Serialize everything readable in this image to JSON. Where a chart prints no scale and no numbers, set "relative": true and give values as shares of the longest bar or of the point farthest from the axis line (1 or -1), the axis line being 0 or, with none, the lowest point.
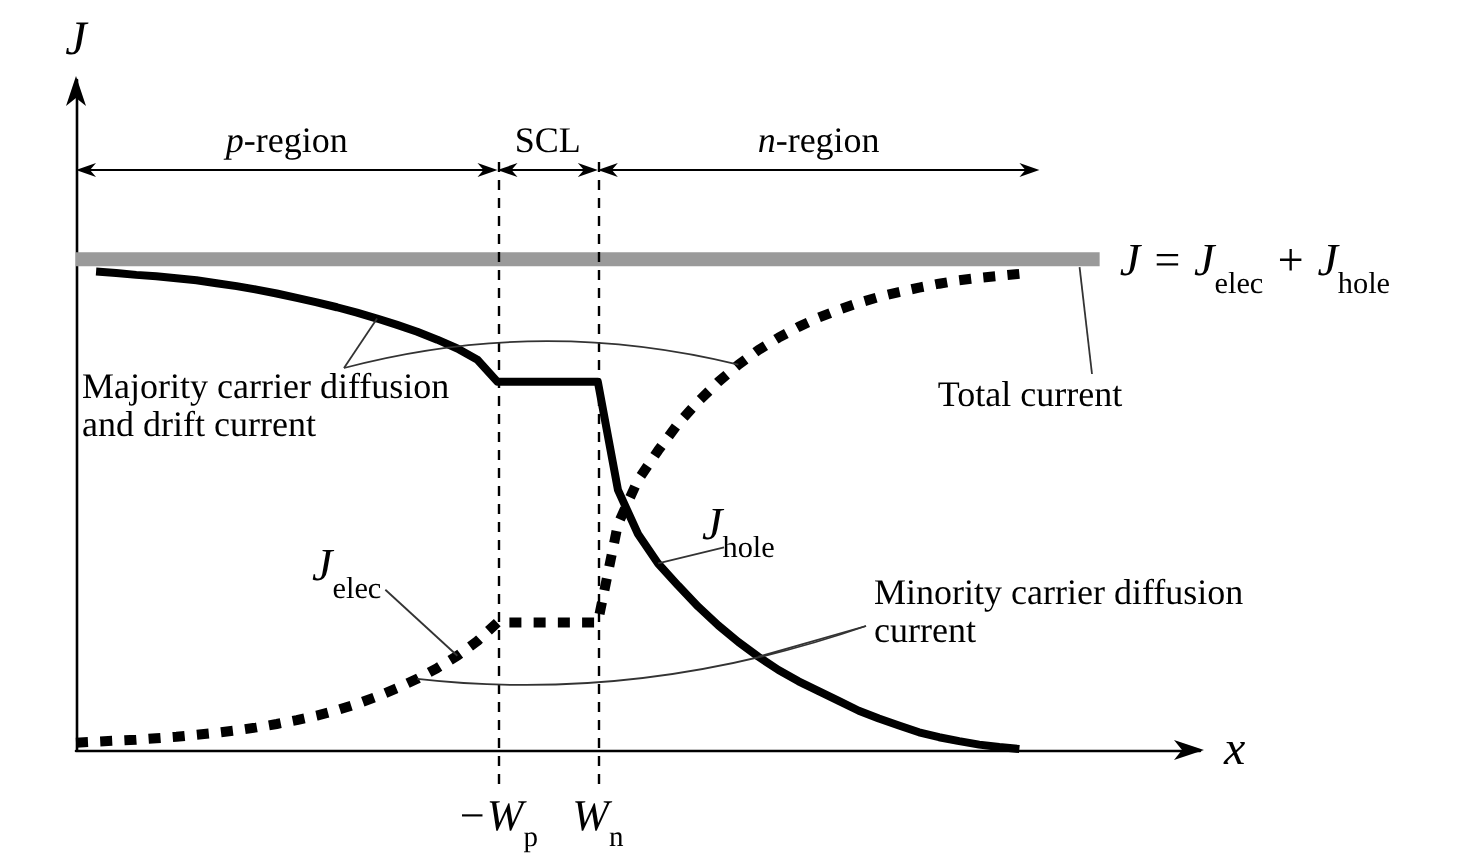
{
  "chart_data": {
    "type": "line",
    "relative": true,
    "xlabel": "x",
    "ylabel": "J",
    "categories": [
      null,
      null,
      null,
      null,
      null,
      null,
      null,
      null,
      null,
      null,
      null,
      null,
      null,
      null,
      null,
      null,
      null,
      null,
      null,
      null,
      null,
      "−W$_{p}$",
      null,
      null,
      null,
      null,
      "W$_{n}$",
      null,
      null,
      null,
      null,
      null,
      null,
      null,
      null,
      null,
      null,
      null,
      null,
      null,
      null,
      null,
      null,
      null,
      null,
      null,
      null,
      null,
      null,
      null,
      null,
      null,
      null,
      null,
      null,
      null,
      null
    ],
    "series": [
      {
        "name": "J = J$_{elec}$ + J$_{hole}$",
        "color": "#9a9a9a",
        "line_style": "solid",
        "values": [
          1,
          1,
          1,
          1,
          1,
          1,
          1,
          1,
          1,
          1,
          1,
          1,
          1,
          1,
          1,
          1,
          1,
          1,
          1,
          1,
          1,
          1,
          1,
          1,
          1,
          1,
          1,
          1,
          1,
          1,
          1,
          1,
          1,
          1,
          1,
          1,
          1,
          1,
          1,
          1,
          1,
          1,
          1,
          1,
          1,
          1,
          1,
          1,
          1,
          1,
          1,
          1,
          null,
          null,
          null,
          null,
          null
        ]
      },
      {
        "name": "J$_{hole}$",
        "color": "#000000",
        "line_style": "solid",
        "values": [
          null,
          0.975,
          0.972,
          0.968,
          0.965,
          0.961,
          0.957,
          0.951,
          0.945,
          0.938,
          0.93,
          0.921,
          0.912,
          0.902,
          0.891,
          0.879,
          0.866,
          0.852,
          0.836,
          0.818,
          0.795,
          0.75,
          0.75,
          0.75,
          0.75,
          0.75,
          0.75,
          0.53,
          0.44,
          0.38,
          0.335,
          0.292,
          0.254,
          0.22,
          0.19,
          0.163,
          0.14,
          0.12,
          0.1,
          0.08,
          0.064,
          0.05,
          0.036,
          0.026,
          0.018,
          0.011,
          0.006,
          0.002,
          null,
          null,
          null,
          null,
          null,
          null,
          null,
          null,
          null
        ]
      },
      {
        "name": "J$_{elec}$",
        "color": "#000000",
        "line_style": "dashed",
        "values": [
          0.015,
          0.017,
          0.019,
          0.021,
          0.024,
          0.027,
          0.031,
          0.035,
          0.04,
          0.046,
          0.053,
          0.061,
          0.07,
          0.081,
          0.094,
          0.109,
          0.126,
          0.145,
          0.167,
          0.192,
          0.222,
          0.26,
          0.26,
          0.26,
          0.26,
          0.26,
          0.26,
          0.46,
          0.55,
          0.61,
          0.665,
          0.71,
          0.75,
          0.785,
          0.815,
          0.84,
          0.862,
          0.881,
          0.897,
          0.911,
          0.923,
          0.933,
          0.942,
          0.95,
          0.957,
          0.962,
          0.966,
          0.97,
          null,
          null,
          null,
          null,
          null,
          null,
          null,
          null,
          null
        ]
      }
    ],
    "ref_lines": [
      {
        "axis": "x",
        "value": "−W$_{p}$",
        "line_style": "dashed",
        "color": "#000000"
      },
      {
        "axis": "x",
        "value": "W$_{n}$",
        "line_style": "dashed",
        "color": "#000000"
      }
    ],
    "annotations": [
      "p-region",
      "SCL",
      "n-region",
      "Majority carrier diffusion and drift current",
      "Minority carrier diffusion current",
      "Total current"
    ]
  }
}
